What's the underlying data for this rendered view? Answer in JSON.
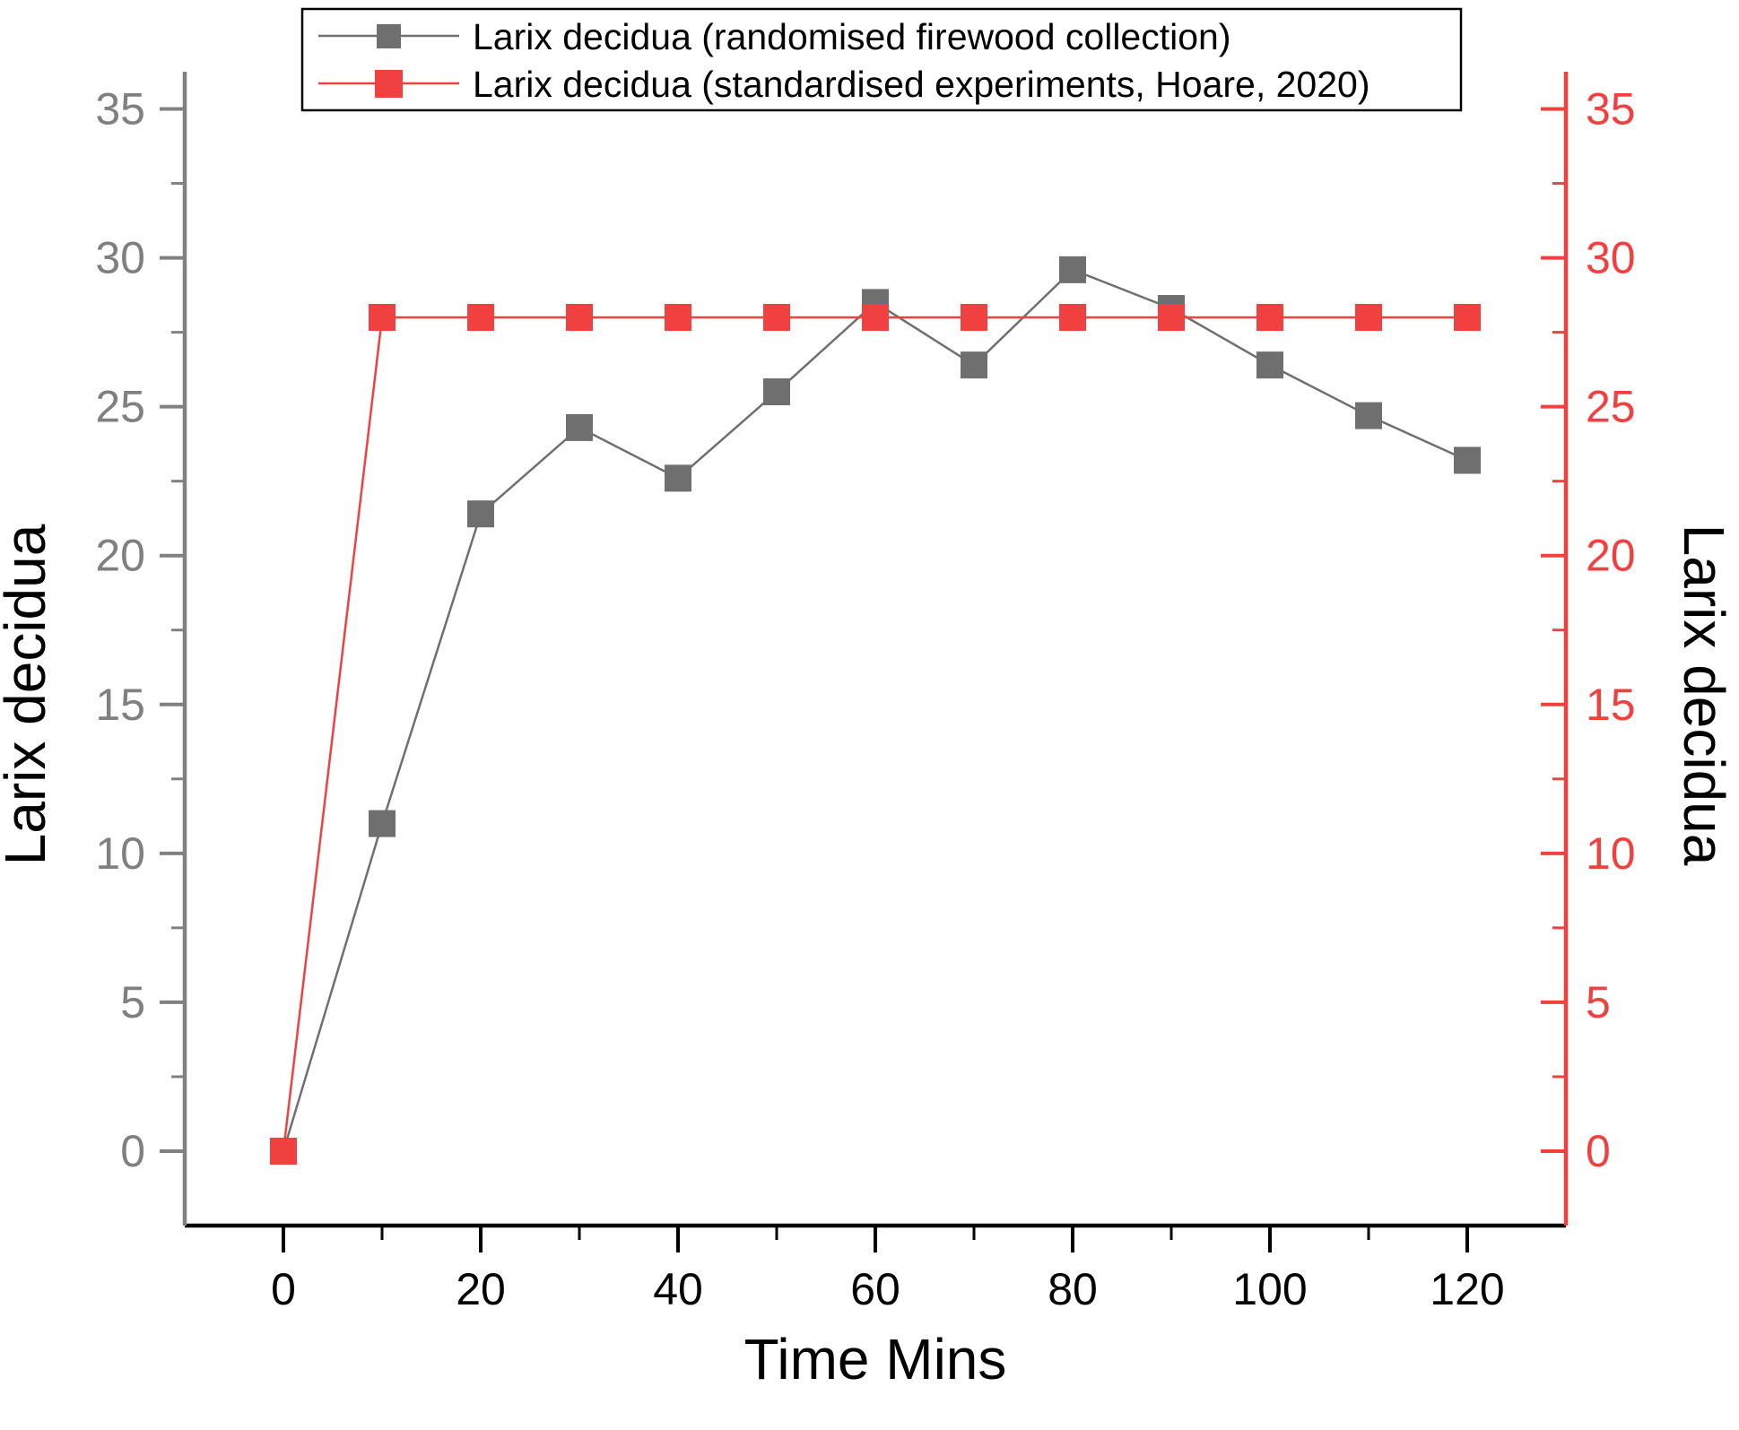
{
  "chart_data": {
    "type": "line",
    "x": [
      0,
      10,
      20,
      30,
      40,
      50,
      60,
      70,
      80,
      90,
      100,
      110,
      120
    ],
    "series": [
      {
        "name": "Larix decidua (randomised firewood collection)",
        "color": "#6F6F6F",
        "marker": "square",
        "values": [
          0,
          11.0,
          21.4,
          24.3,
          22.6,
          25.5,
          28.5,
          26.4,
          29.6,
          28.3,
          26.4,
          24.7,
          23.2
        ]
      },
      {
        "name": "Larix decidua (standardised experiments, Hoare, 2020)",
        "color": "#F14040",
        "marker": "square",
        "values": [
          0,
          28,
          28,
          28,
          28,
          28,
          28,
          28,
          28,
          28,
          28,
          28,
          28
        ]
      }
    ],
    "title": "",
    "xlabel": "Time Mins",
    "ylabel_left": "Larix decidua",
    "ylabel_right": "Larix decidua",
    "xlim": [
      -10,
      130
    ],
    "ylim": [
      -2.5,
      36.25
    ],
    "x_major_ticks": [
      0,
      20,
      40,
      60,
      80,
      100,
      120
    ],
    "x_minor_ticks": [
      10,
      30,
      50,
      70,
      90,
      110
    ],
    "y_major_ticks": [
      0,
      5,
      10,
      15,
      20,
      25,
      30,
      35
    ],
    "y_minor_ticks": [
      2.5,
      7.5,
      12.5,
      17.5,
      22.5,
      27.5,
      32.5
    ],
    "grid": false,
    "legend": {
      "position": "top",
      "border": true
    },
    "axis_colors": {
      "left": "#808080",
      "bottom": "#000000",
      "right": "#F14040",
      "tick_label_left": "#808080",
      "tick_label_bottom": "#000000",
      "tick_label_right": "#F14040"
    }
  }
}
